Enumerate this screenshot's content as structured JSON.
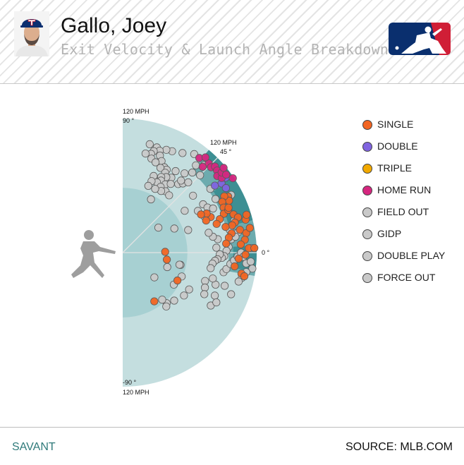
{
  "header": {
    "player_name": "Gallo, Joey",
    "subtitle": "Exit Velocity & Launch Angle Breakdown",
    "team_logo_icon": "texas-rangers-t-icon",
    "league_logo_icon": "mlb-logo-icon"
  },
  "footer": {
    "left": "SAVANT",
    "right": "SOURCE: MLB.COM"
  },
  "colors": {
    "single": "#f26522",
    "double": "#8064e0",
    "triple": "#f2a900",
    "home_run": "#d6267f",
    "out": "#c9c9c9",
    "zone_outer": "#c4dedf",
    "zone_inner": "#a7d0d2",
    "zone_barrel": "#3d8f93",
    "zone_solid": "#6cabae"
  },
  "chart_data": {
    "type": "scatter",
    "title": "",
    "polar": true,
    "radial_axis": "Exit Velocity (MPH)",
    "angle_axis": "Launch Angle (deg)",
    "r_max": 120,
    "angle_range": [
      -90,
      90
    ],
    "annotations": {
      "top_speed": "120 MPH",
      "top_angle": "90 °",
      "mid_speed": "120 MPH",
      "mid_angle": "45 °",
      "zero_angle": "0 °",
      "bottom_angle": "-90 °",
      "bottom_speed": "120 MPH"
    },
    "legend": [
      {
        "key": "single",
        "label": "SINGLE"
      },
      {
        "key": "double",
        "label": "DOUBLE"
      },
      {
        "key": "triple",
        "label": "TRIPLE"
      },
      {
        "key": "home_run",
        "label": "HOME RUN"
      },
      {
        "key": "field_out",
        "label": "FIELD OUT"
      },
      {
        "key": "gidp",
        "label": "GIDP"
      },
      {
        "key": "double_play",
        "label": "DOUBLE PLAY"
      },
      {
        "key": "force_out",
        "label": "FORCE OUT"
      }
    ],
    "legend_placement": "right",
    "series": [
      {
        "key": "single",
        "points": [
          [
            107,
            28
          ],
          [
            106,
            26
          ],
          [
            104,
            29
          ],
          [
            100,
            27
          ],
          [
            99,
            24
          ],
          [
            97,
            21
          ],
          [
            102,
            22
          ],
          [
            105,
            19
          ],
          [
            108,
            17
          ],
          [
            104,
            15
          ],
          [
            101,
            14
          ],
          [
            107,
            11
          ],
          [
            112,
            9
          ],
          [
            110,
            6
          ],
          [
            106,
            4
          ],
          [
            113,
            2
          ],
          [
            110,
            -1
          ],
          [
            104,
            -3
          ],
          [
            101,
            -7
          ],
          [
            108,
            -10
          ],
          [
            111,
            -11
          ],
          [
            99,
            10
          ],
          [
            95,
            14
          ],
          [
            92,
            19
          ],
          [
            88,
            17
          ],
          [
            85,
            22
          ],
          [
            83,
            25
          ],
          [
            78,
            26
          ],
          [
            80,
            21
          ],
          [
            96,
            8
          ],
          [
            93,
            5
          ],
          [
            116,
            11
          ],
          [
            114,
            15
          ],
          [
            118,
            2
          ],
          [
            38,
            1
          ],
          [
            40,
            -9
          ],
          [
            55,
            -27
          ],
          [
            52,
            -57
          ],
          [
            103,
            23
          ],
          [
            116,
            17
          ]
        ]
      },
      {
        "key": "double",
        "points": [
          [
            108,
            35
          ],
          [
            109,
            32
          ],
          [
            114,
            36
          ],
          [
            102,
            36
          ]
        ]
      },
      {
        "key": "home_run",
        "points": [
          [
            111,
            46
          ],
          [
            110,
            44
          ],
          [
            113,
            43
          ],
          [
            112,
            41
          ],
          [
            109,
            39
          ],
          [
            111,
            37
          ],
          [
            114,
            39
          ],
          [
            116,
            37
          ],
          [
            118,
            40
          ],
          [
            109,
            51
          ],
          [
            105,
            47
          ],
          [
            113,
            49
          ],
          [
            119,
            34
          ]
        ]
      },
      {
        "key": "out",
        "points": [
          [
            104,
            59
          ],
          [
            101,
            64
          ],
          [
            100,
            67
          ],
          [
            99,
            72
          ],
          [
            100,
            76
          ],
          [
            97,
            70
          ],
          [
            95,
            73
          ],
          [
            93,
            69
          ],
          [
            92,
            74
          ],
          [
            91,
            77
          ],
          [
            89,
            67
          ],
          [
            88,
            73
          ],
          [
            86,
            70
          ],
          [
            85,
            64
          ],
          [
            84,
            62
          ],
          [
            83,
            66
          ],
          [
            81,
            62
          ],
          [
            80,
            57
          ],
          [
            78,
            60
          ],
          [
            76,
            63
          ],
          [
            74,
            68
          ],
          [
            73,
            62
          ],
          [
            72,
            58
          ],
          [
            70,
            64
          ],
          [
            69,
            68
          ],
          [
            68,
            60
          ],
          [
            67,
            55
          ],
          [
            66,
            51
          ],
          [
            65,
            58
          ],
          [
            64,
            63
          ],
          [
            75,
            55
          ],
          [
            79,
            51
          ],
          [
            82,
            49
          ],
          [
            86,
            47
          ],
          [
            90,
            52
          ],
          [
            95,
            49
          ],
          [
            98,
            45
          ],
          [
            102,
            50
          ],
          [
            107,
            47
          ],
          [
            109,
            54
          ],
          [
            87,
            57
          ],
          [
            83,
            51
          ],
          [
            81,
            39
          ],
          [
            84,
            31
          ],
          [
            86,
            28
          ],
          [
            90,
            26
          ],
          [
            96,
            30
          ],
          [
            97,
            36
          ],
          [
            110,
            28
          ],
          [
            104,
            16
          ],
          [
            101,
            10
          ],
          [
            98,
            7
          ],
          [
            95,
            3
          ],
          [
            93,
            1
          ],
          [
            91,
            -2
          ],
          [
            89,
            -3
          ],
          [
            87,
            -1
          ],
          [
            85,
            -4
          ],
          [
            83,
            -5
          ],
          [
            81,
            -7
          ],
          [
            80,
            -10
          ],
          [
            92,
            -11
          ],
          [
            94,
            -9
          ],
          [
            97,
            -6
          ],
          [
            100,
            -4
          ],
          [
            103,
            -2
          ],
          [
            106,
            0
          ],
          [
            108,
            -2
          ],
          [
            111,
            -5
          ],
          [
            115,
            -4
          ],
          [
            117,
            -7
          ],
          [
            112,
            -9
          ],
          [
            109,
            -12
          ],
          [
            107,
            -14
          ],
          [
            88,
            -19
          ],
          [
            96,
            -18
          ],
          [
            104,
            -21
          ],
          [
            91,
            -25
          ],
          [
            92,
            -31
          ],
          [
            95,
            -28
          ],
          [
            68,
            -29
          ],
          [
            67,
            -35
          ],
          [
            63,
            -43
          ],
          [
            60,
            -49
          ],
          [
            62,
            -51
          ],
          [
            78,
            -19
          ],
          [
            80,
            -23
          ],
          [
            82,
            -27
          ],
          [
            84,
            -16
          ],
          [
            53,
            -12
          ],
          [
            54,
            -32
          ],
          [
            39,
            35
          ],
          [
            42,
            -18
          ],
          [
            36,
            -38
          ],
          [
            62,
            19
          ],
          [
            51,
            25
          ],
          [
            67,
            34
          ],
          [
            54,
            62
          ],
          [
            64,
            69
          ],
          [
            80,
            24
          ],
          [
            77,
            29
          ],
          [
            84,
            3
          ],
          [
            86,
            8
          ],
          [
            82,
            10
          ],
          [
            79,
            13
          ],
          [
            55,
            -50
          ],
          [
            52,
            -12
          ],
          [
            57,
            -22
          ],
          [
            115,
            2
          ],
          [
            105,
            10
          ],
          [
            98,
            12
          ],
          [
            102,
            8
          ]
        ]
      }
    ]
  }
}
